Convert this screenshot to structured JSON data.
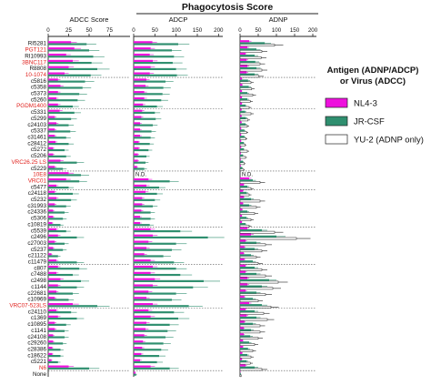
{
  "chart_data": {
    "type": "bar",
    "orientation": "horizontal",
    "super_title": "Phagocytosis Score",
    "panels": [
      {
        "title": "ADCC  Score",
        "ticks": [
          0,
          25,
          50,
          75
        ],
        "xlim": [
          0,
          100
        ]
      },
      {
        "title": "ADCP",
        "ticks": [
          0,
          50,
          100,
          150,
          200
        ],
        "xlim": [
          0,
          210
        ]
      },
      {
        "title": "ADNP",
        "ticks": [
          0,
          50,
          100,
          150,
          200
        ],
        "xlim": [
          0,
          210
        ]
      }
    ],
    "na_label": "N.D.",
    "legend": {
      "title_lines": [
        "Antigen (ADNP/ADCP)",
        "or Virus (ADCC)"
      ],
      "items": [
        {
          "label": "NL4-3",
          "color": "#ee10dd"
        },
        {
          "label": "JR-CSF",
          "color": "#2f8f6f"
        },
        {
          "label": "YU-2 (ADNP only)",
          "color": "#ffffff"
        }
      ],
      "placement": "right"
    },
    "series_colors": {
      "NL4-3": "#ee10dd",
      "JR-CSF": "#2f8f6f",
      "YU-2": "#ffffff"
    },
    "antibodies": [
      {
        "name": "RI5281",
        "red": false,
        "adcc": [
          28,
          47
        ],
        "adcp": [
          44,
          105
        ],
        "adnp": [
          25,
          68,
          95
        ]
      },
      {
        "name": "PGT121",
        "red": true,
        "adcc": [
          32,
          50
        ],
        "adcp": [
          40,
          90
        ],
        "adnp": [
          20,
          45,
          60
        ]
      },
      {
        "name": "RI10993",
        "red": false,
        "adcc": [
          22,
          55
        ],
        "adcp": [
          38,
          95
        ],
        "adnp": [
          15,
          40,
          58
        ]
      },
      {
        "name": "3BNC117",
        "red": true,
        "adcc": [
          30,
          53
        ],
        "adcp": [
          45,
          92
        ],
        "adnp": [
          18,
          42,
          55
        ]
      },
      {
        "name": "R8808",
        "red": false,
        "adcc": [
          25,
          60
        ],
        "adcp": [
          40,
          100
        ],
        "adnp": [
          20,
          45,
          60
        ]
      },
      {
        "name": "10-1074",
        "red": true,
        "adcc": [
          20,
          52
        ],
        "adcp": [
          38,
          102
        ],
        "adnp": [
          18,
          40,
          52
        ]
      },
      {
        "name": "c5816",
        "red": false,
        "adcc": [
          12,
          45
        ],
        "adcp": [
          30,
          75
        ],
        "adnp": [
          5,
          22,
          30
        ]
      },
      {
        "name": "c5358",
        "red": false,
        "adcc": [
          15,
          42
        ],
        "adcp": [
          28,
          70
        ],
        "adnp": [
          6,
          24,
          32
        ]
      },
      {
        "name": "c5373",
        "red": false,
        "adcc": [
          12,
          38
        ],
        "adcp": [
          25,
          68
        ],
        "adnp": [
          5,
          20,
          35
        ]
      },
      {
        "name": "c5260",
        "red": false,
        "adcc": [
          10,
          36
        ],
        "adcp": [
          25,
          65
        ],
        "adnp": [
          5,
          20,
          28
        ]
      },
      {
        "name": "PGDM1400",
        "red": true,
        "adcc": [
          12,
          30
        ],
        "adcp": [
          22,
          55
        ],
        "adnp": [
          5,
          15,
          25
        ]
      },
      {
        "name": "c5331",
        "red": false,
        "adcc": [
          14,
          32
        ],
        "adcp": [
          20,
          50
        ],
        "adnp": [
          4,
          14,
          30
        ]
      },
      {
        "name": "c5299",
        "red": false,
        "adcc": [
          8,
          28
        ],
        "adcp": [
          18,
          52
        ],
        "adnp": [
          4,
          16,
          22
        ]
      },
      {
        "name": "c24103",
        "red": false,
        "adcc": [
          10,
          25
        ],
        "adcp": [
          15,
          45
        ],
        "adnp": [
          4,
          15,
          20
        ]
      },
      {
        "name": "c5337",
        "red": false,
        "adcc": [
          8,
          27
        ],
        "adcp": [
          15,
          42
        ],
        "adnp": [
          3,
          12,
          18
        ]
      },
      {
        "name": "c31461",
        "red": false,
        "adcc": [
          8,
          22
        ],
        "adcp": [
          15,
          40
        ],
        "adnp": [
          3,
          12,
          16
        ]
      },
      {
        "name": "c28412",
        "red": false,
        "adcc": [
          9,
          25
        ],
        "adcp": [
          12,
          38
        ],
        "adnp": [
          3,
          10,
          14
        ]
      },
      {
        "name": "c5272",
        "red": false,
        "adcc": [
          6,
          20
        ],
        "adcp": [
          12,
          35
        ],
        "adnp": [
          3,
          10,
          20
        ]
      },
      {
        "name": "c5206",
        "red": false,
        "adcc": [
          6,
          22
        ],
        "adcp": [
          10,
          30
        ],
        "adnp": [
          2,
          8,
          15
        ]
      },
      {
        "name": "VRC26.25 LS",
        "red": true,
        "adcc": [
          15,
          35
        ],
        "adcp": [
          10,
          28
        ],
        "adnp": [
          2,
          8,
          12
        ]
      },
      {
        "name": "c5229",
        "red": false,
        "adcc": [
          8,
          18
        ],
        "adcp": [
          8,
          25
        ],
        "adnp": [
          2,
          6,
          10
        ]
      },
      {
        "name": "10E8",
        "red": true,
        "adcc": [
          25,
          40
        ],
        "adcp": null,
        "adnp": null
      },
      {
        "name": "VRC01",
        "red": true,
        "adcc": [
          22,
          38
        ],
        "adcp": [
          35,
          85
        ],
        "adnp": [
          25,
          35,
          55
        ]
      },
      {
        "name": "c5477",
        "red": false,
        "adcc": [
          10,
          25
        ],
        "adcp": [
          30,
          60
        ],
        "adnp": [
          10,
          20,
          30
        ]
      },
      {
        "name": "c24118",
        "red": false,
        "adcc": [
          8,
          30
        ],
        "adcp": [
          28,
          55
        ],
        "adnp": [
          8,
          18,
          25
        ]
      },
      {
        "name": "c5232",
        "red": false,
        "adcc": [
          10,
          28
        ],
        "adcp": [
          20,
          50
        ],
        "adnp": [
          10,
          30,
          55
        ]
      },
      {
        "name": "c31993",
        "red": false,
        "adcc": [
          8,
          22
        ],
        "adcp": [
          20,
          45
        ],
        "adnp": [
          8,
          25,
          45
        ]
      },
      {
        "name": "c24336",
        "red": false,
        "adcc": [
          6,
          20
        ],
        "adcp": [
          18,
          40
        ],
        "adnp": [
          6,
          20,
          40
        ]
      },
      {
        "name": "c5306",
        "red": false,
        "adcc": [
          6,
          18
        ],
        "adcp": [
          15,
          40
        ],
        "adnp": [
          5,
          18,
          30
        ]
      },
      {
        "name": "c10819",
        "red": false,
        "adcc": [
          5,
          15
        ],
        "adcp": [
          15,
          38
        ],
        "adnp": [
          5,
          15,
          25
        ]
      },
      {
        "name": "c5539",
        "red": false,
        "adcc": [
          10,
          22
        ],
        "adcp": [
          40,
          110
        ],
        "adnp": [
          20,
          60,
          95
        ]
      },
      {
        "name": "c2496",
        "red": false,
        "adcc": [
          12,
          35
        ],
        "adcp": [
          45,
          175
        ],
        "adnp": [
          30,
          100,
          155
        ]
      },
      {
        "name": "c27003",
        "red": false,
        "adcc": [
          8,
          20
        ],
        "adcp": [
          35,
          100
        ],
        "adnp": [
          15,
          45,
          70
        ]
      },
      {
        "name": "c5237",
        "red": false,
        "adcc": [
          6,
          18
        ],
        "adcp": [
          30,
          90
        ],
        "adnp": [
          12,
          40,
          60
        ]
      },
      {
        "name": "c21122",
        "red": false,
        "adcc": [
          4,
          12
        ],
        "adcp": [
          25,
          70
        ],
        "adnp": [
          10,
          30,
          45
        ]
      },
      {
        "name": "c11479",
        "red": false,
        "adcc": [
          10,
          35
        ],
        "adcp": [
          40,
          95
        ],
        "adnp": [
          12,
          35,
          50
        ]
      },
      {
        "name": "c807",
        "red": false,
        "adcc": [
          12,
          38
        ],
        "adcp": [
          45,
          100
        ],
        "adnp": [
          15,
          40,
          60
        ]
      },
      {
        "name": "c7488",
        "red": false,
        "adcc": [
          10,
          30
        ],
        "adcp": [
          40,
          110
        ],
        "adnp": [
          15,
          45,
          70
        ]
      },
      {
        "name": "c2498",
        "red": false,
        "adcc": [
          15,
          40
        ],
        "adcp": [
          50,
          165
        ],
        "adnp": [
          20,
          80,
          105
        ]
      },
      {
        "name": "c1144",
        "red": false,
        "adcc": [
          12,
          35
        ],
        "adcp": [
          45,
          140
        ],
        "adnp": [
          20,
          60,
          90
        ]
      },
      {
        "name": "c22681",
        "red": false,
        "adcc": [
          10,
          30
        ],
        "adcp": [
          35,
          100
        ],
        "adnp": [
          15,
          45,
          70
        ]
      },
      {
        "name": "c10969",
        "red": false,
        "adcc": [
          8,
          25
        ],
        "adcp": [
          30,
          90
        ],
        "adnp": [
          12,
          35,
          50
        ]
      },
      {
        "name": "VRC07-523LS",
        "red": true,
        "adcc": [
          30,
          60
        ],
        "adcp": [
          45,
          130
        ],
        "adnp": [
          25,
          60,
          85
        ]
      },
      {
        "name": "c24110",
        "red": false,
        "adcc": [
          10,
          28
        ],
        "adcp": [
          35,
          95
        ],
        "adnp": [
          15,
          40,
          65
        ]
      },
      {
        "name": "c1369",
        "red": false,
        "adcc": [
          12,
          35
        ],
        "adcp": [
          40,
          105
        ],
        "adnp": [
          18,
          45,
          75
        ]
      },
      {
        "name": "c10895",
        "red": false,
        "adcc": [
          8,
          22
        ],
        "adcp": [
          30,
          85
        ],
        "adnp": [
          12,
          35,
          55
        ]
      },
      {
        "name": "c1141",
        "red": false,
        "adcc": [
          8,
          20
        ],
        "adcp": [
          28,
          80
        ],
        "adnp": [
          10,
          30,
          55
        ]
      },
      {
        "name": "c24108",
        "red": false,
        "adcc": [
          6,
          20
        ],
        "adcp": [
          25,
          75
        ],
        "adnp": [
          10,
          28,
          50
        ]
      },
      {
        "name": "c29260",
        "red": false,
        "adcc": [
          6,
          18
        ],
        "adcp": [
          22,
          70
        ],
        "adnp": [
          8,
          25,
          40
        ]
      },
      {
        "name": "c28386",
        "red": false,
        "adcc": [
          5,
          15
        ],
        "adcp": [
          20,
          65
        ],
        "adnp": [
          8,
          22,
          35
        ]
      },
      {
        "name": "c18622",
        "red": false,
        "adcc": [
          5,
          15
        ],
        "adcp": [
          18,
          60
        ],
        "adnp": [
          6,
          20,
          30
        ]
      },
      {
        "name": "c5221",
        "red": false,
        "adcc": [
          4,
          12
        ],
        "adcp": [
          15,
          55
        ],
        "adnp": [
          5,
          18,
          28
        ]
      },
      {
        "name": "N6",
        "red": true,
        "adcc": [
          25,
          50
        ],
        "adcp": [
          40,
          85
        ],
        "adnp": [
          15,
          40,
          60
        ]
      },
      {
        "name": "None",
        "red": false,
        "adcc": [
          0,
          0
        ],
        "adcp": [
          4,
          6
        ],
        "adnp": [
          1,
          2,
          3
        ]
      }
    ]
  }
}
